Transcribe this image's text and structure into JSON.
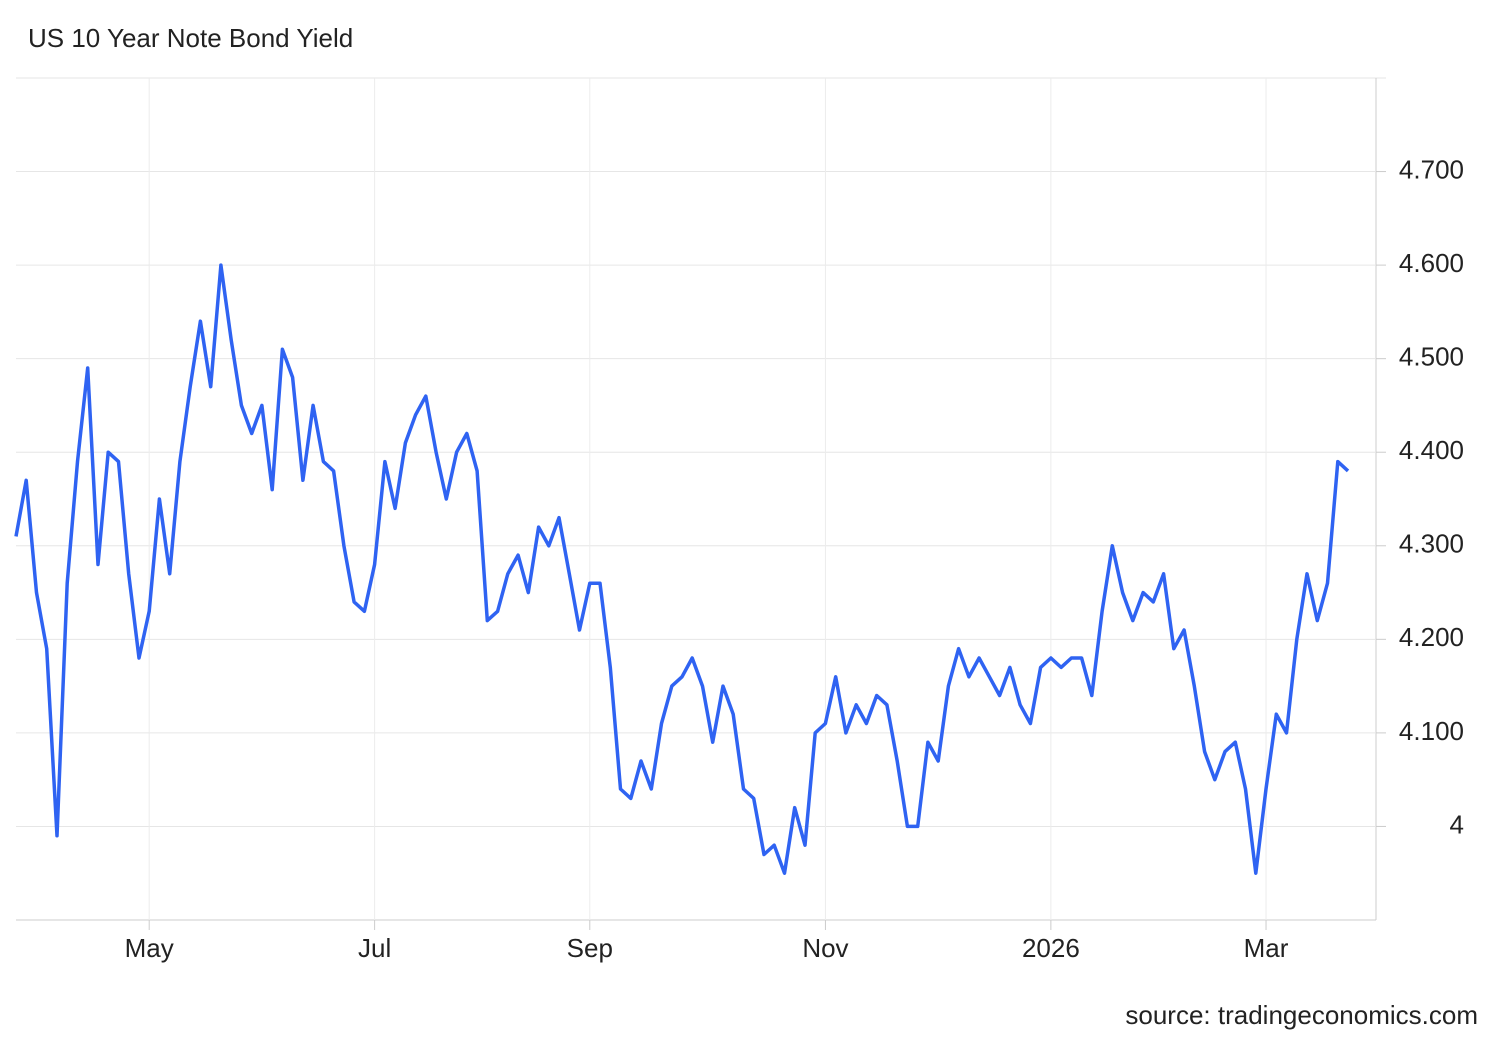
{
  "chart_data": {
    "type": "line",
    "title": "US 10 Year Note Bond Yield",
    "source": "source: tradingeconomics.com",
    "categories": [
      null,
      null,
      null,
      null,
      null,
      null,
      null,
      null,
      null,
      null,
      null,
      null,
      null,
      "May",
      null,
      null,
      null,
      null,
      null,
      null,
      null,
      null,
      null,
      null,
      null,
      null,
      null,
      null,
      null,
      null,
      null,
      null,
      null,
      null,
      null,
      "Jul",
      null,
      null,
      null,
      null,
      null,
      null,
      null,
      null,
      null,
      null,
      null,
      null,
      null,
      null,
      null,
      null,
      null,
      null,
      null,
      null,
      "Sep",
      null,
      null,
      null,
      null,
      null,
      null,
      null,
      null,
      null,
      null,
      null,
      null,
      null,
      null,
      null,
      null,
      null,
      null,
      null,
      null,
      null,
      null,
      "Nov",
      null,
      null,
      null,
      null,
      null,
      null,
      null,
      null,
      null,
      null,
      null,
      null,
      null,
      null,
      null,
      null,
      null,
      null,
      null,
      null,
      null,
      "2026",
      null,
      null,
      null,
      null,
      null,
      null,
      null,
      null,
      null,
      null,
      null,
      null,
      null,
      null,
      null,
      null,
      null,
      null,
      null,
      null,
      "Mar",
      null,
      null,
      null,
      null,
      null,
      null,
      null,
      null
    ],
    "values": [
      4.31,
      4.37,
      4.25,
      4.19,
      3.99,
      4.26,
      4.39,
      4.49,
      4.28,
      4.4,
      4.39,
      4.27,
      4.18,
      4.23,
      4.35,
      4.27,
      4.39,
      4.47,
      4.54,
      4.47,
      4.6,
      4.52,
      4.45,
      4.42,
      4.45,
      4.36,
      4.51,
      4.48,
      4.37,
      4.45,
      4.39,
      4.38,
      4.3,
      4.24,
      4.23,
      4.28,
      4.39,
      4.34,
      4.41,
      4.44,
      4.46,
      4.4,
      4.35,
      4.4,
      4.42,
      4.38,
      4.22,
      4.23,
      4.27,
      4.29,
      4.25,
      4.32,
      4.3,
      4.33,
      4.27,
      4.21,
      4.26,
      4.26,
      4.17,
      4.04,
      4.03,
      4.07,
      4.04,
      4.11,
      4.15,
      4.16,
      4.18,
      4.15,
      4.09,
      4.15,
      4.12,
      4.04,
      4.03,
      3.97,
      3.98,
      3.95,
      4.02,
      3.98,
      4.1,
      4.11,
      4.16,
      4.1,
      4.13,
      4.11,
      4.14,
      4.13,
      4.07,
      4.0,
      4.0,
      4.09,
      4.07,
      4.15,
      4.19,
      4.16,
      4.18,
      4.16,
      4.14,
      4.17,
      4.13,
      4.11,
      4.17,
      4.18,
      4.17,
      4.18,
      4.18,
      4.14,
      4.23,
      4.3,
      4.25,
      4.22,
      4.25,
      4.24,
      4.27,
      4.19,
      4.21,
      4.15,
      4.08,
      4.05,
      4.08,
      4.09,
      4.04,
      3.95,
      4.04,
      4.12,
      4.1,
      4.2,
      4.27,
      4.22,
      4.26,
      4.39,
      4.38
    ],
    "color": "#2f63f2",
    "ylim": [
      3.9,
      4.8
    ],
    "yticks": [
      4,
      {
        "value": 4.1,
        "label": "4.100"
      },
      {
        "value": 4.2,
        "label": "4.200"
      },
      {
        "value": 4.3,
        "label": "4.300"
      },
      {
        "value": 4.4,
        "label": "4.400"
      },
      {
        "value": 4.5,
        "label": "4.500"
      },
      {
        "value": 4.6,
        "label": "4.600"
      },
      {
        "value": 4.7,
        "label": "4.700"
      }
    ],
    "grid": true
  }
}
